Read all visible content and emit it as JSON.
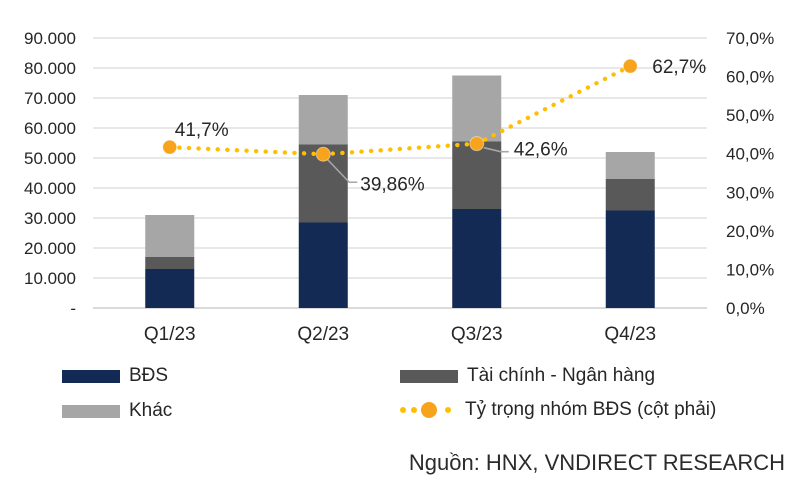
{
  "chart_data": {
    "type": "bar",
    "subtype": "stacked-bar-with-line",
    "categories": [
      "Q1/23",
      "Q2/23",
      "Q3/23",
      "Q4/23"
    ],
    "bar_series": [
      {
        "name": "BĐS",
        "color": "#132a54",
        "values": [
          13000,
          28500,
          33000,
          32500
        ]
      },
      {
        "name": "Tài chính - Ngân hàng",
        "color": "#595959",
        "values": [
          4000,
          26000,
          22500,
          10500
        ]
      },
      {
        "name": "Khác",
        "color": "#a6a6a6",
        "values": [
          14000,
          16500,
          22000,
          9000
        ]
      }
    ],
    "line_series": {
      "name": "Tỷ trọng nhóm BĐS (cột phải)",
      "axis": "right",
      "dot_color": "#ffbf00",
      "marker_color": "#f7a41c",
      "values": [
        41.7,
        39.86,
        42.6,
        62.7
      ],
      "point_labels": [
        "41,7%",
        "39,86%",
        "42,6%",
        "62,7%"
      ]
    },
    "left_axis": {
      "min": 0,
      "max": 90000,
      "tick_labels": [
        "90.000",
        "80.000",
        "70.000",
        "60.000",
        "50.000",
        "40.000",
        "30.000",
        "20.000",
        "10.000",
        "-"
      ]
    },
    "right_axis": {
      "min": 0,
      "max": 70,
      "tick_labels": [
        "70,0%",
        "60,0%",
        "50,0%",
        "40,0%",
        "30,0%",
        "20,0%",
        "10,0%",
        "0,0%"
      ]
    },
    "grid": true,
    "legend_position": "bottom",
    "title": "",
    "xlabel": "",
    "ylabel": ""
  },
  "legend": {
    "items": [
      {
        "label": "BĐS",
        "swatch": "#132a54",
        "type": "bar"
      },
      {
        "label": "Tài chính - Ngân hàng",
        "swatch": "#595959",
        "type": "bar"
      },
      {
        "label": "Khác",
        "swatch": "#a6a6a6",
        "type": "bar"
      },
      {
        "label": "Tỷ trọng nhóm BĐS (cột phải)",
        "swatch": "#f7a41c",
        "type": "line"
      }
    ]
  },
  "source_note": "Nguồn: HNX, VNDIRECT RESEARCH",
  "colors": {
    "gridline": "#d9d9d9",
    "axis_line": "#c3c3c3",
    "leader_line": "#a6a6a6",
    "text": "#262626"
  }
}
